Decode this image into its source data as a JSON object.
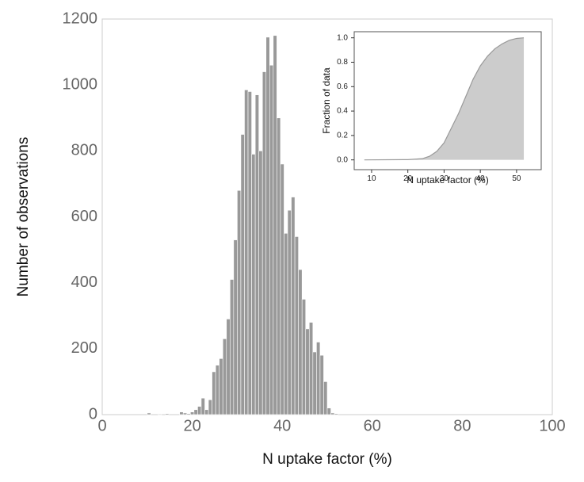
{
  "chart_data": [
    {
      "type": "histogram",
      "xlabel": "N uptake factor (%)",
      "ylabel": "Number of  observations",
      "bins": [
        10,
        10.8,
        11.6,
        12.4,
        13.2,
        14,
        14.8,
        15.6,
        16.4,
        17.2,
        18,
        18.8,
        19.6,
        20.4,
        21.2,
        22,
        22.8,
        23.6,
        24.4,
        25.2,
        26,
        26.8,
        27.6,
        28.4,
        29.2,
        30,
        30.8,
        31.6,
        32.4,
        33.2,
        34,
        34.8,
        35.6,
        36.4,
        37.2,
        38,
        38.8,
        39.6,
        40.4,
        41.2,
        42,
        42.8,
        43.6,
        44.4,
        45.2,
        46,
        46.8,
        47.6,
        48.4,
        49.2,
        50,
        50.8,
        51.6,
        52.4
      ],
      "values": [
        5,
        0,
        0,
        2,
        0,
        3,
        0,
        0,
        0,
        8,
        5,
        3,
        8,
        15,
        25,
        50,
        15,
        45,
        130,
        150,
        170,
        230,
        290,
        410,
        530,
        680,
        850,
        985,
        980,
        790,
        970,
        800,
        1040,
        1145,
        1060,
        1150,
        900,
        760,
        550,
        620,
        660,
        540,
        440,
        350,
        260,
        280,
        190,
        220,
        180,
        100,
        20,
        5,
        3
      ],
      "color": "#999999",
      "xlim": [
        0,
        100
      ],
      "xticks": [
        0,
        20,
        40,
        60,
        80,
        100
      ],
      "ylim": [
        0,
        1200
      ],
      "yticks": [
        0,
        200,
        400,
        600,
        800,
        1000,
        1200
      ]
    },
    {
      "type": "area",
      "xlabel": "N uptake factor (%)",
      "ylabel": "Fraction of data",
      "x": [
        8,
        20,
        24,
        26,
        28,
        30,
        32,
        34,
        36,
        38,
        40,
        42,
        44,
        46,
        48,
        50,
        52
      ],
      "values": [
        0,
        0.002,
        0.01,
        0.03,
        0.07,
        0.14,
        0.26,
        0.38,
        0.52,
        0.66,
        0.77,
        0.85,
        0.91,
        0.95,
        0.98,
        0.995,
        1.0
      ],
      "color": "#cccccc",
      "line_color": "#999999",
      "xlim": [
        5.2,
        56.8
      ],
      "xticks": [
        10,
        20,
        30,
        40,
        50
      ],
      "ylim": [
        -0.08,
        1.05
      ],
      "yticks": [
        {
          "value": 0,
          "label": "0.0"
        },
        {
          "value": 0.2,
          "label": "0.2"
        },
        {
          "value": 0.4,
          "label": "0.4"
        },
        {
          "value": 0.6,
          "label": "0.6"
        },
        {
          "value": 0.8,
          "label": "0.8"
        },
        {
          "value": 1,
          "label": "1.0"
        }
      ]
    }
  ]
}
